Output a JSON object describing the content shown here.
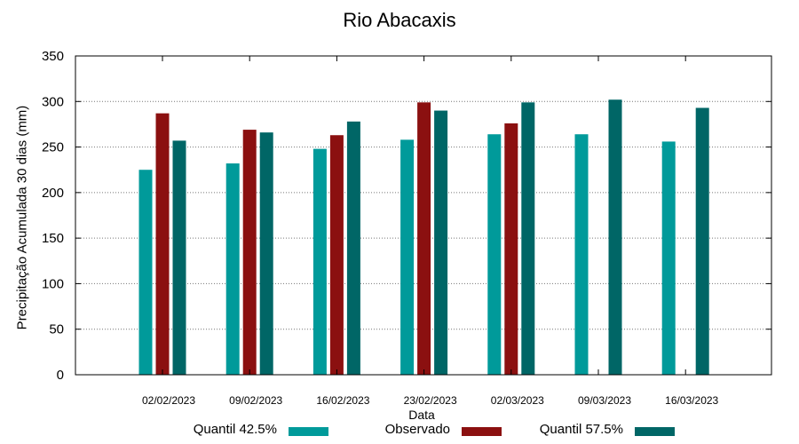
{
  "chart_data": {
    "type": "bar",
    "title": "Rio Abacaxis",
    "xlabel": "Data",
    "ylabel": "Precipitação Acumulada 30 dias (mm)",
    "ylim": [
      0,
      350
    ],
    "yticks": [
      0,
      50,
      100,
      150,
      200,
      250,
      300,
      350
    ],
    "grid": true,
    "legend_position": "bottom",
    "categories": [
      "02/02/2023",
      "09/02/2023",
      "16/02/2023",
      "23/02/2023",
      "02/03/2023",
      "09/03/2023",
      "16/03/2023"
    ],
    "series": [
      {
        "name": "Quantil 42.5%",
        "color": "#009a9a",
        "values": [
          225,
          232,
          248,
          258,
          264,
          264,
          256
        ]
      },
      {
        "name": "Observado",
        "color": "#8b1010",
        "values": [
          287,
          269,
          263,
          299,
          276,
          null,
          null
        ]
      },
      {
        "name": "Quantil 57.5%",
        "color": "#006666",
        "values": [
          257,
          266,
          278,
          290,
          299,
          302,
          293
        ]
      }
    ]
  }
}
